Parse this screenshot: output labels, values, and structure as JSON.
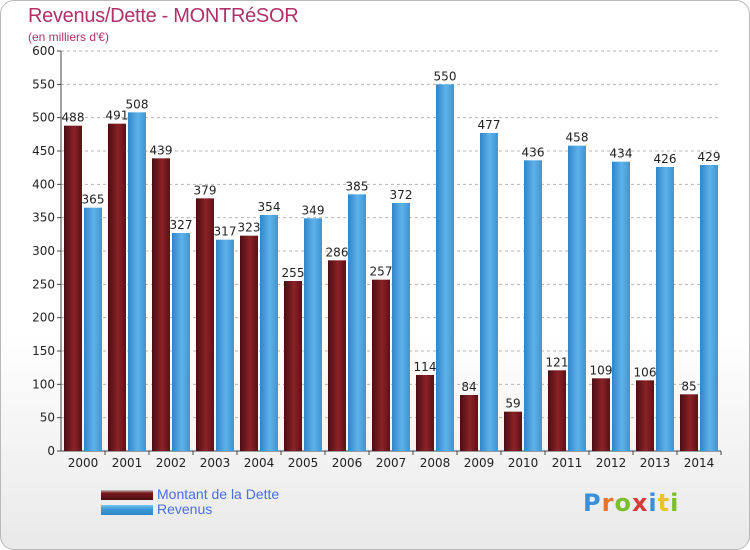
{
  "title": "Revenus/Dette - MONTRéSOR",
  "subtitle": "(en milliers d'€)",
  "logo": {
    "letters": [
      "P",
      "r",
      "o",
      "x",
      "i",
      "t",
      "i"
    ],
    "colors": [
      "#3a8fd8",
      "#e8732a",
      "#7cbf2c",
      "#d83a3a",
      "#3a8fd8",
      "#e8c42a",
      "#7cbf2c"
    ]
  },
  "colors": {
    "dette": "#7b1a1f",
    "revenus": "#3d9ad8"
  },
  "chart_data": {
    "type": "bar",
    "categories": [
      "2000",
      "2001",
      "2002",
      "2003",
      "2004",
      "2005",
      "2006",
      "2007",
      "2008",
      "2009",
      "2010",
      "2011",
      "2012",
      "2013",
      "2014"
    ],
    "series": [
      {
        "name": "Montant de la Dette",
        "values": [
          488,
          491,
          439,
          379,
          323,
          255,
          286,
          257,
          114,
          84,
          59,
          121,
          109,
          106,
          85
        ]
      },
      {
        "name": "Revenus",
        "values": [
          365,
          508,
          327,
          317,
          354,
          349,
          385,
          372,
          550,
          477,
          436,
          458,
          434,
          426,
          429
        ]
      }
    ],
    "ylim": [
      0,
      600
    ],
    "yticks": [
      "0",
      "50",
      "100",
      "150",
      "200",
      "250",
      "300",
      "350",
      "400",
      "450",
      "500",
      "550",
      "600"
    ],
    "grid": true,
    "legend": "bottom-left"
  }
}
